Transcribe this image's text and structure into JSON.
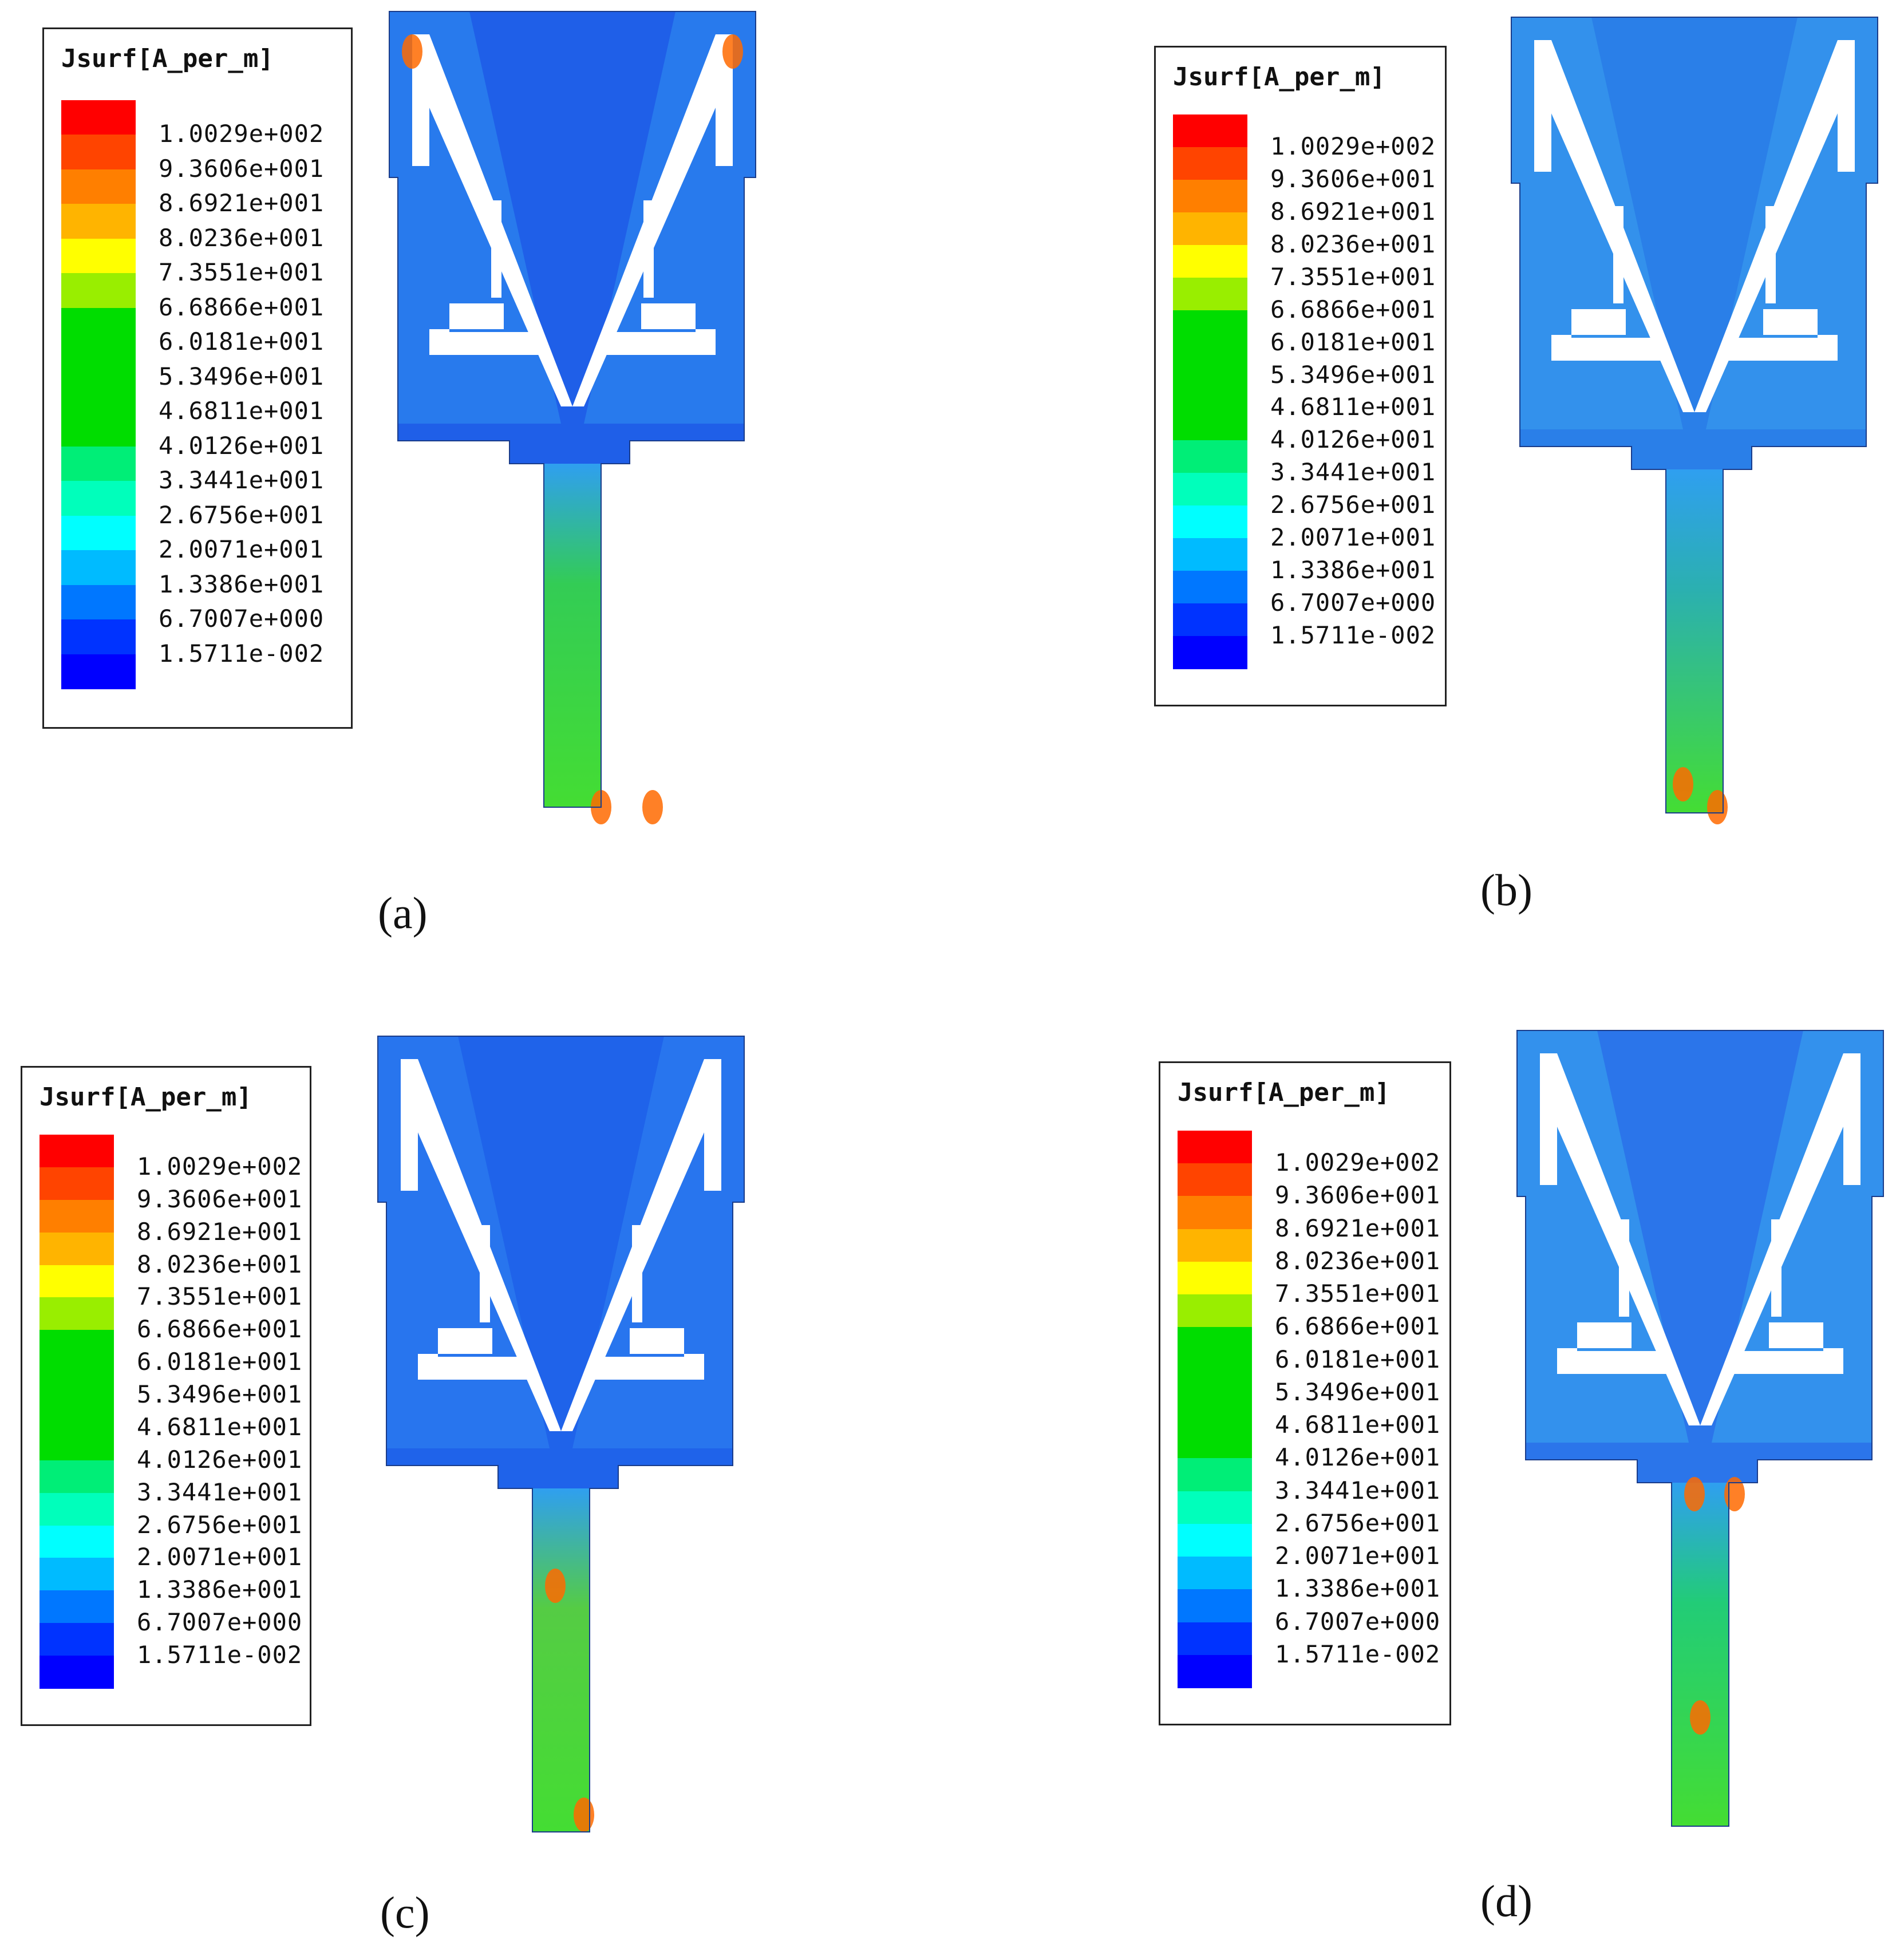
{
  "legend": {
    "title": "Jsurf[A_per_m]",
    "labels": [
      "1.0029e+002",
      "9.3606e+001",
      "8.6921e+001",
      "8.0236e+001",
      "7.3551e+001",
      "6.6866e+001",
      "6.0181e+001",
      "5.3496e+001",
      "4.6811e+001",
      "4.0126e+001",
      "3.3441e+001",
      "2.6756e+001",
      "2.0071e+001",
      "1.3386e+001",
      "6.7007e+000",
      "1.5711e-002"
    ],
    "colors": [
      "#ff0000",
      "#ff4400",
      "#ff7f00",
      "#ffb400",
      "#ffff00",
      "#99ee00",
      "#00dd00",
      "#00dd00",
      "#00dd00",
      "#00dd00",
      "#00ee77",
      "#00ffbb",
      "#00ffff",
      "#00bbff",
      "#0077ff",
      "#0033ff",
      "#0000ff"
    ]
  },
  "panels": [
    {
      "caption": "(a)"
    },
    {
      "caption": "(b)"
    },
    {
      "caption": "(c)"
    },
    {
      "caption": "(d)"
    }
  ]
}
